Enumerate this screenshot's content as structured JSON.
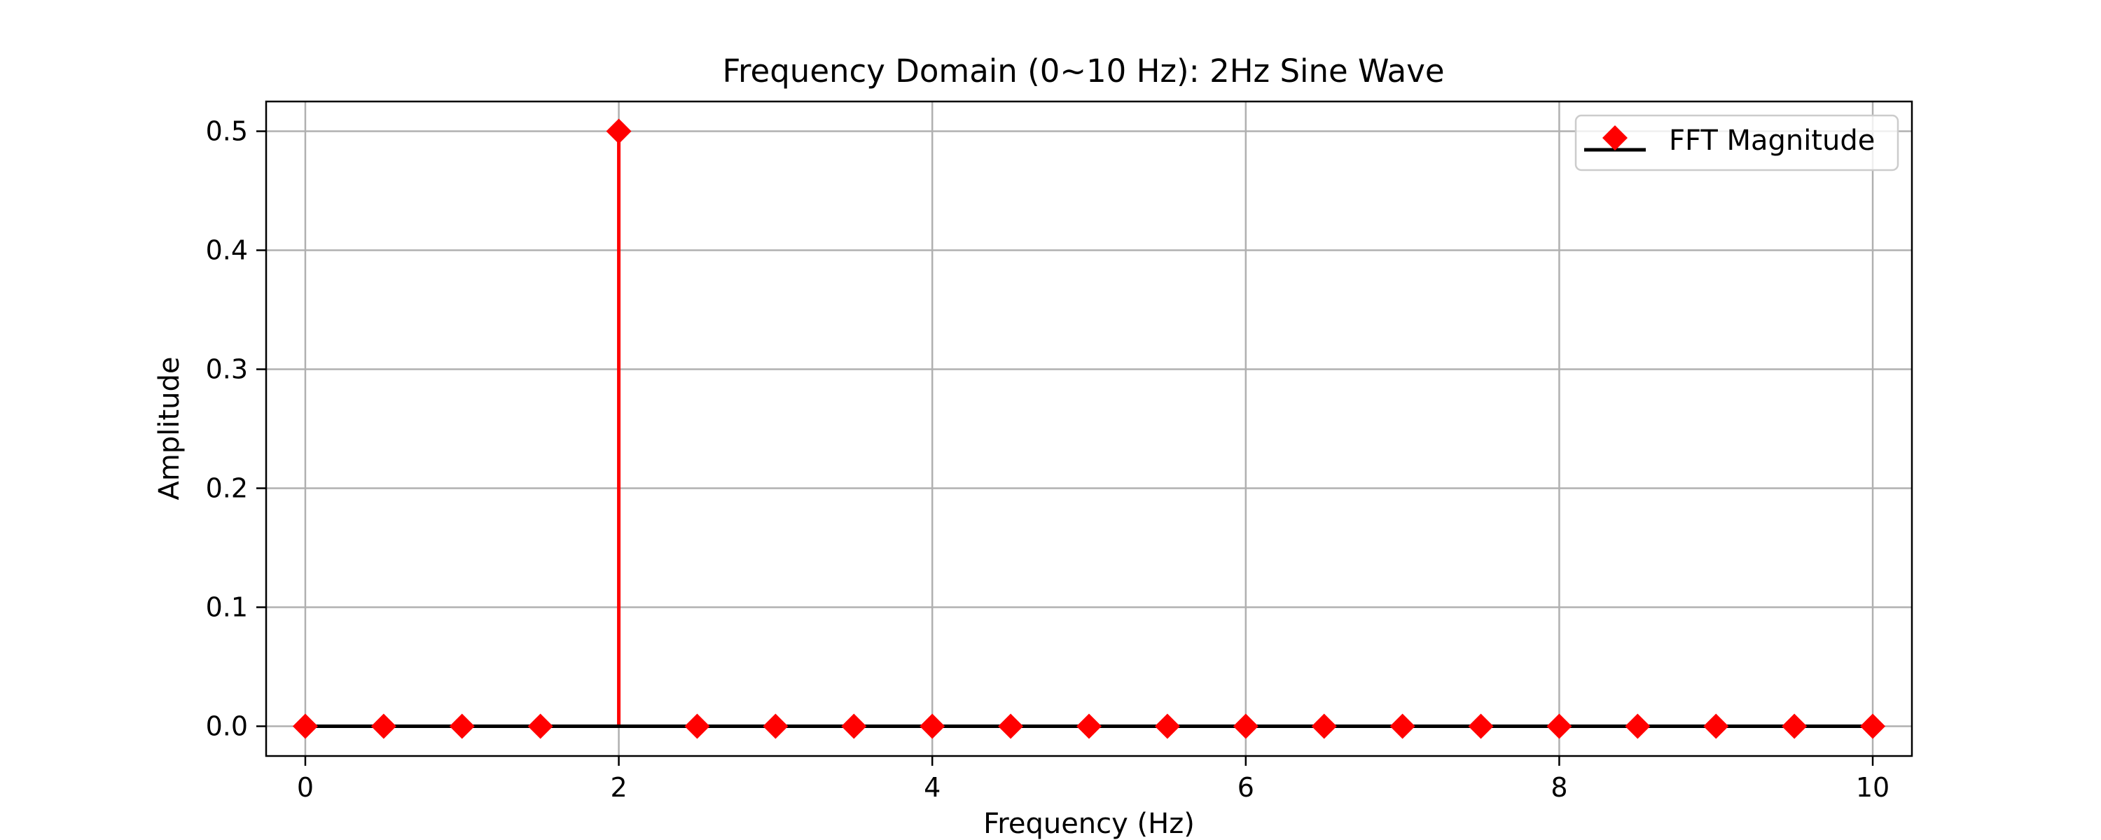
{
  "chart_data": {
    "type": "stem",
    "title": "Frequency Domain (0~10 Hz): 2Hz Sine Wave",
    "xlabel": "Frequency (Hz)",
    "ylabel": "Amplitude",
    "xlim": [
      -0.25,
      10.25
    ],
    "ylim": [
      -0.025,
      0.525
    ],
    "xticks": [
      0,
      2,
      4,
      6,
      8,
      10
    ],
    "yticks": [
      0.0,
      0.1,
      0.2,
      0.3,
      0.4,
      0.5
    ],
    "xtick_labels": [
      "0",
      "2",
      "4",
      "6",
      "8",
      "10"
    ],
    "ytick_labels": [
      "0.0",
      "0.1",
      "0.2",
      "0.3",
      "0.4",
      "0.5"
    ],
    "grid": true,
    "legend": {
      "position": "top-right",
      "entries": [
        "FFT Magnitude"
      ]
    },
    "series": [
      {
        "name": "FFT Magnitude",
        "marker": "diamond",
        "color": "#ff0000",
        "baseline_color": "#000000",
        "x": [
          0,
          0.5,
          1,
          1.5,
          2,
          2.5,
          3,
          3.5,
          4,
          4.5,
          5,
          5.5,
          6,
          6.5,
          7,
          7.5,
          8,
          8.5,
          9,
          9.5,
          10
        ],
        "y": [
          0,
          0,
          0,
          0,
          0.5,
          0,
          0,
          0,
          0,
          0,
          0,
          0,
          0,
          0,
          0,
          0,
          0,
          0,
          0,
          0,
          0
        ]
      }
    ]
  }
}
